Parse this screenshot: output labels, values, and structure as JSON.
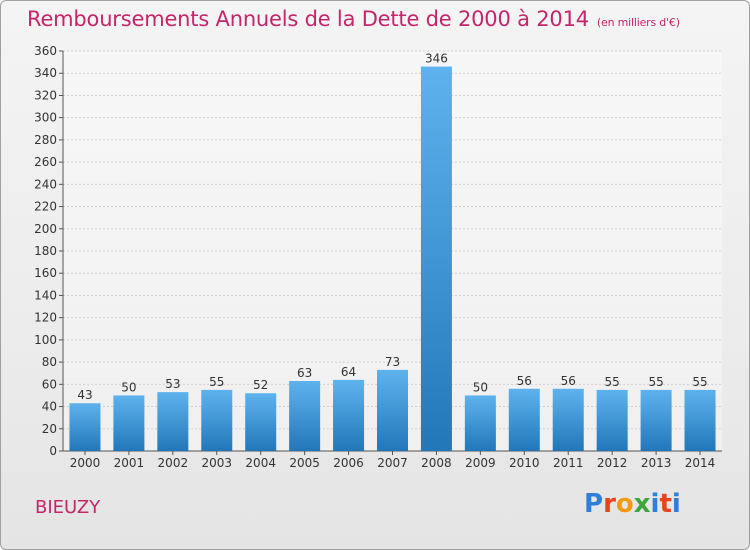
{
  "header": {
    "title": "Remboursements Annuels de la Dette de 2000 à 2014",
    "subtitle": "(en milliers d'€)"
  },
  "footer": {
    "town": "BIEUZY",
    "logo_text": "Proxiti",
    "logo_colors": [
      "#2f7fd8",
      "#e8451e",
      "#f29a12",
      "#3ca83c",
      "#2f7fd8",
      "#e8451e",
      "#2f7fd8"
    ]
  },
  "colors": {
    "accent": "#c5256b",
    "bar_light": "#5eb3ee",
    "bar_dark": "#2277b9",
    "grid": "#cfcfcf"
  },
  "chart_data": {
    "type": "bar",
    "categories": [
      "2000",
      "2001",
      "2002",
      "2003",
      "2004",
      "2005",
      "2006",
      "2007",
      "2008",
      "2009",
      "2010",
      "2011",
      "2012",
      "2013",
      "2014"
    ],
    "values": [
      43,
      50,
      53,
      55,
      52,
      63,
      64,
      73,
      346,
      50,
      56,
      56,
      55,
      55,
      55
    ],
    "ylim": [
      0,
      360
    ],
    "yticks": [
      0,
      20,
      40,
      60,
      80,
      100,
      120,
      140,
      160,
      180,
      200,
      220,
      240,
      260,
      280,
      300,
      320,
      340,
      360
    ],
    "grid": true,
    "data_labels": true
  }
}
